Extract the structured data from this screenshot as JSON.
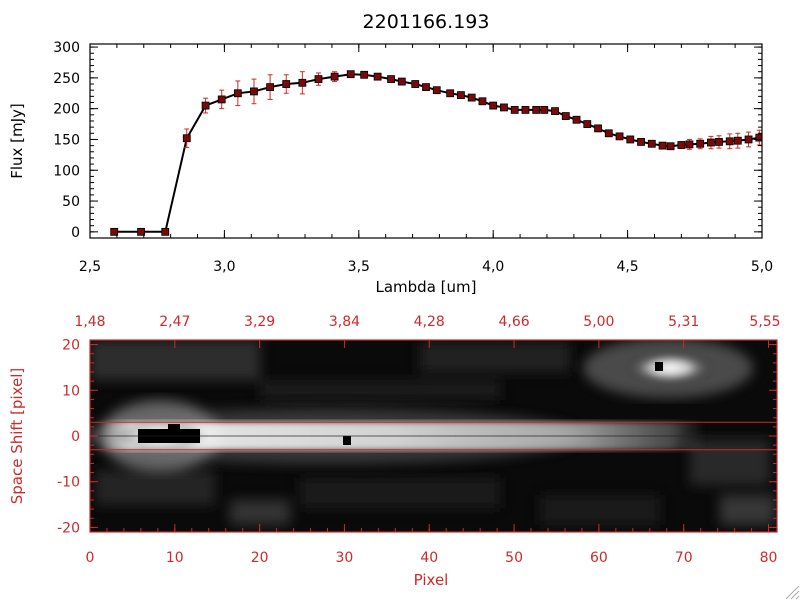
{
  "colors": {
    "red": "#cc2a2a",
    "black": "#000000",
    "marker": "#7a0a0a"
  },
  "chart_data": [
    {
      "type": "line",
      "title": "2201166.193",
      "xlabel": "Lambda [um]",
      "ylabel": "Flux [mJy]",
      "xlim": [
        2.5,
        5.0
      ],
      "ylim": [
        -10,
        305
      ],
      "xticks": [
        "2.5",
        "3.0",
        "3.5",
        "4.0",
        "4.5",
        "5.0"
      ],
      "yticks": [
        "0",
        "50",
        "100",
        "150",
        "200",
        "250",
        "300"
      ],
      "grid": false,
      "series": [
        {
          "x": [
            2.59,
            2.69,
            2.78,
            2.86,
            2.93,
            2.99,
            3.05,
            3.11,
            3.17,
            3.23,
            3.29,
            3.35,
            3.41,
            3.47,
            3.52,
            3.57,
            3.62,
            3.66,
            3.71,
            3.75,
            3.79,
            3.84,
            3.88,
            3.92,
            3.96,
            4.0,
            4.04,
            4.08,
            4.12,
            4.16,
            4.19,
            4.23,
            4.27,
            4.31,
            4.35,
            4.39,
            4.43,
            4.47,
            4.51,
            4.55,
            4.59,
            4.63,
            4.66,
            4.7,
            4.73,
            4.77,
            4.81,
            4.84,
            4.88,
            4.91,
            4.95,
            4.99
          ],
          "y": [
            0,
            0,
            0,
            152,
            205,
            215,
            225,
            228,
            235,
            240,
            242,
            248,
            252,
            256,
            255,
            252,
            248,
            244,
            240,
            235,
            230,
            225,
            222,
            218,
            212,
            205,
            202,
            198,
            198,
            198,
            198,
            196,
            188,
            182,
            175,
            168,
            160,
            155,
            150,
            146,
            143,
            140,
            139,
            141,
            142,
            143,
            145,
            146,
            147,
            148,
            150,
            153
          ],
          "err": [
            0,
            0,
            0,
            15,
            12,
            15,
            20,
            20,
            20,
            15,
            18,
            10,
            8,
            5,
            5,
            5,
            5,
            5,
            5,
            5,
            5,
            5,
            5,
            5,
            5,
            5,
            5,
            5,
            5,
            5,
            5,
            5,
            5,
            5,
            5,
            5,
            5,
            5,
            5,
            5,
            5,
            5,
            5,
            5,
            8,
            8,
            10,
            10,
            12,
            12,
            12,
            12
          ]
        }
      ]
    },
    {
      "type": "heatmap",
      "xlabel": "Pixel",
      "ylabel": "Space Shift [pixel]",
      "xlim": [
        0,
        81
      ],
      "ylim": [
        -21,
        21
      ],
      "xticks": [
        "0",
        "10",
        "20",
        "30",
        "40",
        "50",
        "60",
        "70",
        "80"
      ],
      "yticks": [
        "-20",
        "-10",
        "0",
        "10",
        "20"
      ],
      "top_axis_ticks": [
        "1.48",
        "2.47",
        "3.29",
        "3.84",
        "4.28",
        "4.66",
        "5.00",
        "5.31",
        "5.55"
      ],
      "extraction_band": [
        -3,
        3
      ],
      "spectrum_trace_y": 0,
      "secondary_source": {
        "x": 67,
        "y": 14.5
      }
    }
  ]
}
